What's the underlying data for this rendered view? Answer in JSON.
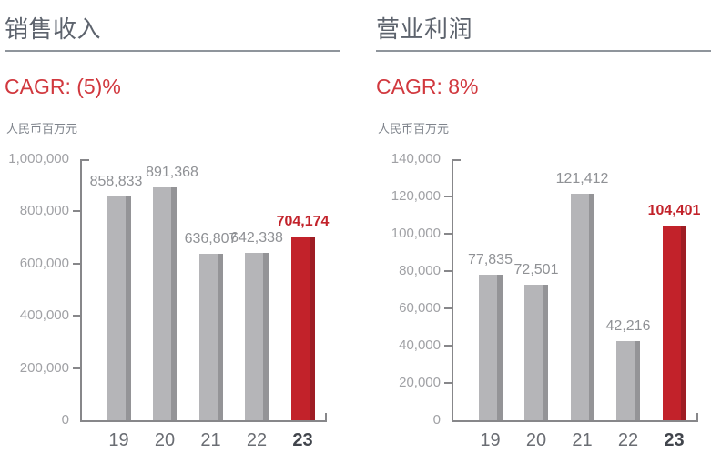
{
  "colors": {
    "bar_gray": "#b5b5b8",
    "bar_gray_edge": "#949497",
    "bar_red": "#c2222a",
    "bar_red_edge": "#9e1d24",
    "accent_red": "#d1383e",
    "axis": "#87878a",
    "title_text": "#5d636d"
  },
  "chart_data": [
    {
      "type": "bar",
      "title": "销售收入",
      "subtitle": "CAGR: (5)%",
      "ylabel": "人民币百万元",
      "categories": [
        "19",
        "20",
        "21",
        "22",
        "23"
      ],
      "values": [
        858833,
        891368,
        636807,
        642338,
        704174
      ],
      "value_labels": [
        "858,833",
        "891,368",
        "636,807",
        "642,338",
        "704,174"
      ],
      "ylim": [
        0,
        1000000
      ],
      "ytick_step": 200000,
      "yticks": [
        0,
        200000,
        400000,
        600000,
        800000,
        1000000
      ],
      "ytick_labels": [
        "0",
        "200,000",
        "400,000",
        "600,000",
        "800,000",
        "1,000,000"
      ],
      "highlight_index": 4,
      "grid": false,
      "legend": null
    },
    {
      "type": "bar",
      "title": "营业利润",
      "subtitle": "CAGR: 8%",
      "ylabel": "人民币百万元",
      "categories": [
        "19",
        "20",
        "21",
        "22",
        "23"
      ],
      "values": [
        77835,
        72501,
        121412,
        42216,
        104401
      ],
      "value_labels": [
        "77,835",
        "72,501",
        "121,412",
        "42,216",
        "104,401"
      ],
      "ylim": [
        0,
        140000
      ],
      "ytick_step": 20000,
      "yticks": [
        0,
        20000,
        40000,
        60000,
        80000,
        100000,
        120000,
        140000
      ],
      "ytick_labels": [
        "0",
        "20,000",
        "40,000",
        "60,000",
        "80,000",
        "100,000",
        "120,000",
        "140,000"
      ],
      "highlight_index": 4,
      "grid": false,
      "legend": null
    }
  ]
}
